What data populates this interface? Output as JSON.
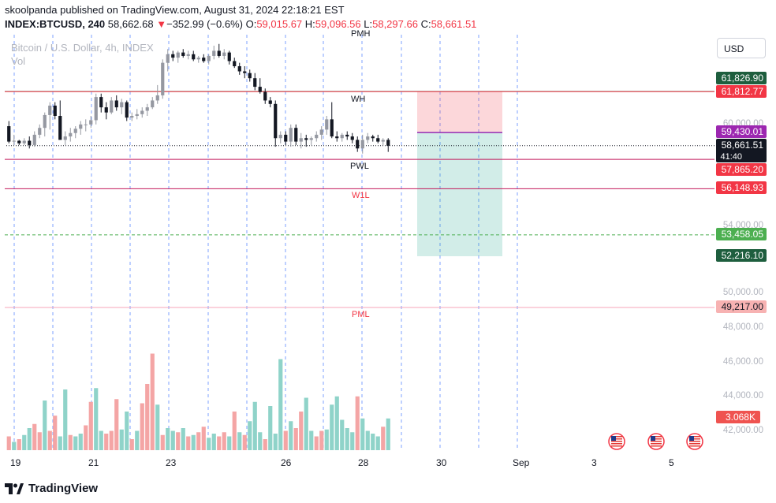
{
  "header": {
    "publisher_line": "skoolpanda published on TradingView.com, August 31, 2024 22:18:21 EST",
    "symbol": "INDEX:BTCUSD, 240",
    "last": "58,662.68",
    "change_arrow": "▼",
    "change": "−352.99 (−0.6%)",
    "o_label": "O:",
    "o_val": "59,015.67",
    "h_label": "H:",
    "h_val": "59,096.56",
    "l_label": "L:",
    "l_val": "58,297.66",
    "c_label": "C:",
    "c_val": "58,661.51"
  },
  "watermark": {
    "title": "Bitcoin / U.S. Dollar, 4h, INDEX",
    "vol": "Vol"
  },
  "currency_button": "USD",
  "footer": {
    "brand": "TradingView"
  },
  "colors": {
    "up": "#26a69a",
    "down": "#ef5350",
    "upVol": "#8fd3c9",
    "downVol": "#f4a5a5",
    "dark": "#131722",
    "grey": "#9598a1"
  },
  "chart_data": {
    "type": "candlestick",
    "x_labels": [
      "19",
      "21",
      "23",
      "26",
      "28",
      "30",
      "Sep",
      "3",
      "5"
    ],
    "y_ticks": [
      "60,000.00",
      "54,000.00",
      "50,000.00",
      "48,000.00",
      "46,000.00",
      "44,000.00",
      "42,000.00"
    ],
    "ohlc_estimated": [
      [
        59800,
        60100,
        58800,
        58900
      ],
      [
        58900,
        59300,
        58700,
        58950
      ],
      [
        58950,
        59000,
        58700,
        58800
      ],
      [
        58800,
        59100,
        58700,
        58950
      ],
      [
        58950,
        59200,
        58500,
        58700
      ],
      [
        58700,
        59500,
        58600,
        59300
      ],
      [
        59300,
        59900,
        59100,
        59700
      ],
      [
        59700,
        60600,
        59200,
        60450
      ],
      [
        60450,
        61200,
        59600,
        61000
      ],
      [
        61000,
        61200,
        60200,
        60400
      ],
      [
        60400,
        61300,
        59200,
        59000
      ],
      [
        59000,
        59500,
        58700,
        59200
      ],
      [
        59200,
        59700,
        58900,
        59400
      ],
      [
        59400,
        59800,
        59100,
        59650
      ],
      [
        59650,
        60100,
        59300,
        59900
      ],
      [
        59900,
        60200,
        59500,
        59900
      ],
      [
        59900,
        60400,
        59700,
        60150
      ],
      [
        60150,
        61700,
        59900,
        61500
      ],
      [
        61500,
        61700,
        60600,
        60900
      ],
      [
        60900,
        61200,
        60200,
        60600
      ],
      [
        60600,
        61500,
        60500,
        61300
      ],
      [
        61300,
        61600,
        60700,
        60900
      ],
      [
        60900,
        61400,
        60500,
        61200
      ],
      [
        61200,
        61300,
        60100,
        60300
      ],
      [
        60300,
        60600,
        60100,
        60400
      ],
      [
        60400,
        60800,
        60200,
        60500
      ],
      [
        60500,
        60900,
        60300,
        60700
      ],
      [
        60700,
        61100,
        60400,
        60900
      ],
      [
        60900,
        61500,
        60800,
        61300
      ],
      [
        61300,
        62200,
        61100,
        61600
      ],
      [
        61600,
        63700,
        61400,
        63500
      ],
      [
        63500,
        64300,
        63000,
        64000
      ],
      [
        64000,
        64200,
        63600,
        63800
      ],
      [
        63800,
        64200,
        63500,
        64100
      ],
      [
        64100,
        64300,
        63800,
        63900
      ],
      [
        63900,
        64200,
        63700,
        64000
      ],
      [
        64000,
        64200,
        63600,
        63700
      ],
      [
        63700,
        63900,
        63500,
        63800
      ],
      [
        63800,
        64000,
        63500,
        63600
      ],
      [
        63600,
        64000,
        63400,
        63900
      ],
      [
        63900,
        64500,
        63700,
        64200
      ],
      [
        64200,
        64600,
        63800,
        63900
      ],
      [
        63900,
        64300,
        63700,
        64100
      ],
      [
        64100,
        64200,
        63400,
        63600
      ],
      [
        63600,
        63800,
        63200,
        63300
      ],
      [
        63300,
        63500,
        62800,
        63000
      ],
      [
        63000,
        63300,
        62600,
        62900
      ],
      [
        62900,
        63100,
        62400,
        62600
      ],
      [
        62600,
        62900,
        61900,
        62100
      ],
      [
        62100,
        62600,
        61700,
        61800
      ],
      [
        61800,
        62000,
        61100,
        61300
      ],
      [
        61300,
        61500,
        60900,
        61100
      ],
      [
        61100,
        61300,
        58600,
        59100
      ],
      [
        59100,
        59500,
        58800,
        59300
      ],
      [
        59300,
        59500,
        58700,
        58900
      ],
      [
        58900,
        59900,
        58600,
        59700
      ],
      [
        59700,
        59900,
        58700,
        58900
      ],
      [
        58900,
        59400,
        58500,
        59100
      ],
      [
        59100,
        59300,
        58600,
        59000
      ],
      [
        59000,
        59200,
        58700,
        59100
      ],
      [
        59100,
        59500,
        58900,
        59300
      ],
      [
        59300,
        59800,
        59000,
        59600
      ],
      [
        59600,
        60400,
        59300,
        60200
      ],
      [
        60200,
        61200,
        59100,
        59200
      ],
      [
        59200,
        59500,
        58900,
        59100
      ],
      [
        59100,
        59400,
        58900,
        59300
      ],
      [
        59300,
        59500,
        59000,
        59200
      ],
      [
        59200,
        59400,
        58800,
        59000
      ],
      [
        59000,
        59200,
        58300,
        58500
      ],
      [
        58500,
        59300,
        58200,
        59000
      ],
      [
        59000,
        59400,
        58800,
        59200
      ],
      [
        59200,
        59300,
        58900,
        59100
      ],
      [
        59100,
        59300,
        58800,
        58900
      ],
      [
        58900,
        59100,
        58700,
        59000
      ],
      [
        59000,
        59100,
        58300,
        58662
      ]
    ],
    "volume_estimated": [
      [
        1,
        0
      ],
      [
        0.6,
        1
      ],
      [
        0.8,
        0
      ],
      [
        1.1,
        1
      ],
      [
        1.6,
        1
      ],
      [
        1.9,
        0
      ],
      [
        1.3,
        0
      ],
      [
        3.6,
        1
      ],
      [
        1.4,
        0
      ],
      [
        2.5,
        0
      ],
      [
        1.0,
        1
      ],
      [
        4.4,
        1
      ],
      [
        1.1,
        0
      ],
      [
        1.0,
        1
      ],
      [
        1.2,
        1
      ],
      [
        1.8,
        0
      ],
      [
        3.5,
        0
      ],
      [
        4.5,
        1
      ],
      [
        1.4,
        1
      ],
      [
        1.2,
        0
      ],
      [
        1.4,
        0
      ],
      [
        3.7,
        0
      ],
      [
        1.5,
        1
      ],
      [
        2.8,
        1
      ],
      [
        0.8,
        0
      ],
      [
        1.4,
        1
      ],
      [
        3.4,
        0
      ],
      [
        4.8,
        0
      ],
      [
        7.0,
        0
      ],
      [
        3.3,
        1
      ],
      [
        1.1,
        0
      ],
      [
        1.6,
        1
      ],
      [
        1.4,
        1
      ],
      [
        1.3,
        0
      ],
      [
        1.6,
        1
      ],
      [
        1.0,
        0
      ],
      [
        1.1,
        1
      ],
      [
        1.3,
        0
      ],
      [
        1.7,
        0
      ],
      [
        0.9,
        1
      ],
      [
        1.2,
        1
      ],
      [
        1.0,
        0
      ],
      [
        1.3,
        0
      ],
      [
        1.0,
        1
      ],
      [
        2.8,
        0
      ],
      [
        1.3,
        1
      ],
      [
        1.1,
        0
      ],
      [
        2.1,
        1
      ],
      [
        3.5,
        1
      ],
      [
        1.3,
        1
      ],
      [
        0.8,
        0
      ],
      [
        3.2,
        1
      ],
      [
        1.2,
        1
      ],
      [
        6.6,
        1
      ],
      [
        1.4,
        0
      ],
      [
        2.1,
        1
      ],
      [
        1.6,
        0
      ],
      [
        2.8,
        0
      ],
      [
        3.8,
        1
      ],
      [
        1.4,
        1
      ],
      [
        1.0,
        0
      ],
      [
        1.4,
        0
      ],
      [
        1.5,
        1
      ],
      [
        3.3,
        1
      ],
      [
        3.9,
        1
      ],
      [
        2.2,
        1
      ],
      [
        1.6,
        1
      ],
      [
        1.3,
        1
      ],
      [
        3.9,
        0
      ],
      [
        2.3,
        1
      ],
      [
        1.4,
        1
      ],
      [
        1.2,
        1
      ],
      [
        1.0,
        1
      ],
      [
        1.7,
        0
      ],
      [
        2.3,
        1
      ]
    ],
    "levels": [
      {
        "price": "61,826.90",
        "label_color": "#1e5e3e",
        "line_color": "#1e5e3e",
        "text_color": "#ffffff",
        "dash": "none"
      },
      {
        "price": "61,812.77",
        "label_color": "#f23645",
        "line_color": "#f23645",
        "text_color": "#ffffff",
        "dash": "none"
      },
      {
        "price": "59,430.01",
        "label_color": "#9c27b0",
        "line_color": "#9c27b0",
        "text_color": "#ffffff",
        "dash": "none"
      },
      {
        "price": "58,661.51",
        "label_color": "#131722",
        "line_color": "#131722",
        "text_color": "#ffffff",
        "dash": "dot"
      },
      {
        "price": "57,865.20",
        "label_color": "#f23645",
        "line_color": "#c2185b",
        "text_color": "#ffffff",
        "dash": "none"
      },
      {
        "price": "56,148.93",
        "label_color": "#f23645",
        "line_color": "#c2185b",
        "text_color": "#ffffff",
        "dash": "none"
      },
      {
        "price": "53,458.05",
        "label_color": "#4caf50",
        "line_color": "#4caf50",
        "text_color": "#ffffff",
        "dash": "dash"
      },
      {
        "price": "52,216.10",
        "label_color": "#1e5e3e",
        "line_color": "none",
        "text_color": "#ffffff",
        "dash": "none"
      },
      {
        "price": "49,217.00",
        "label_color": "#f7b2b2",
        "line_color": "#f7a4b8",
        "text_color": "#131722",
        "dash": "none"
      }
    ],
    "countdown": "41:40",
    "volume_label": "3.068K",
    "level_text": [
      "PMH",
      "WH",
      "PWL",
      "W1L",
      "PML"
    ]
  }
}
